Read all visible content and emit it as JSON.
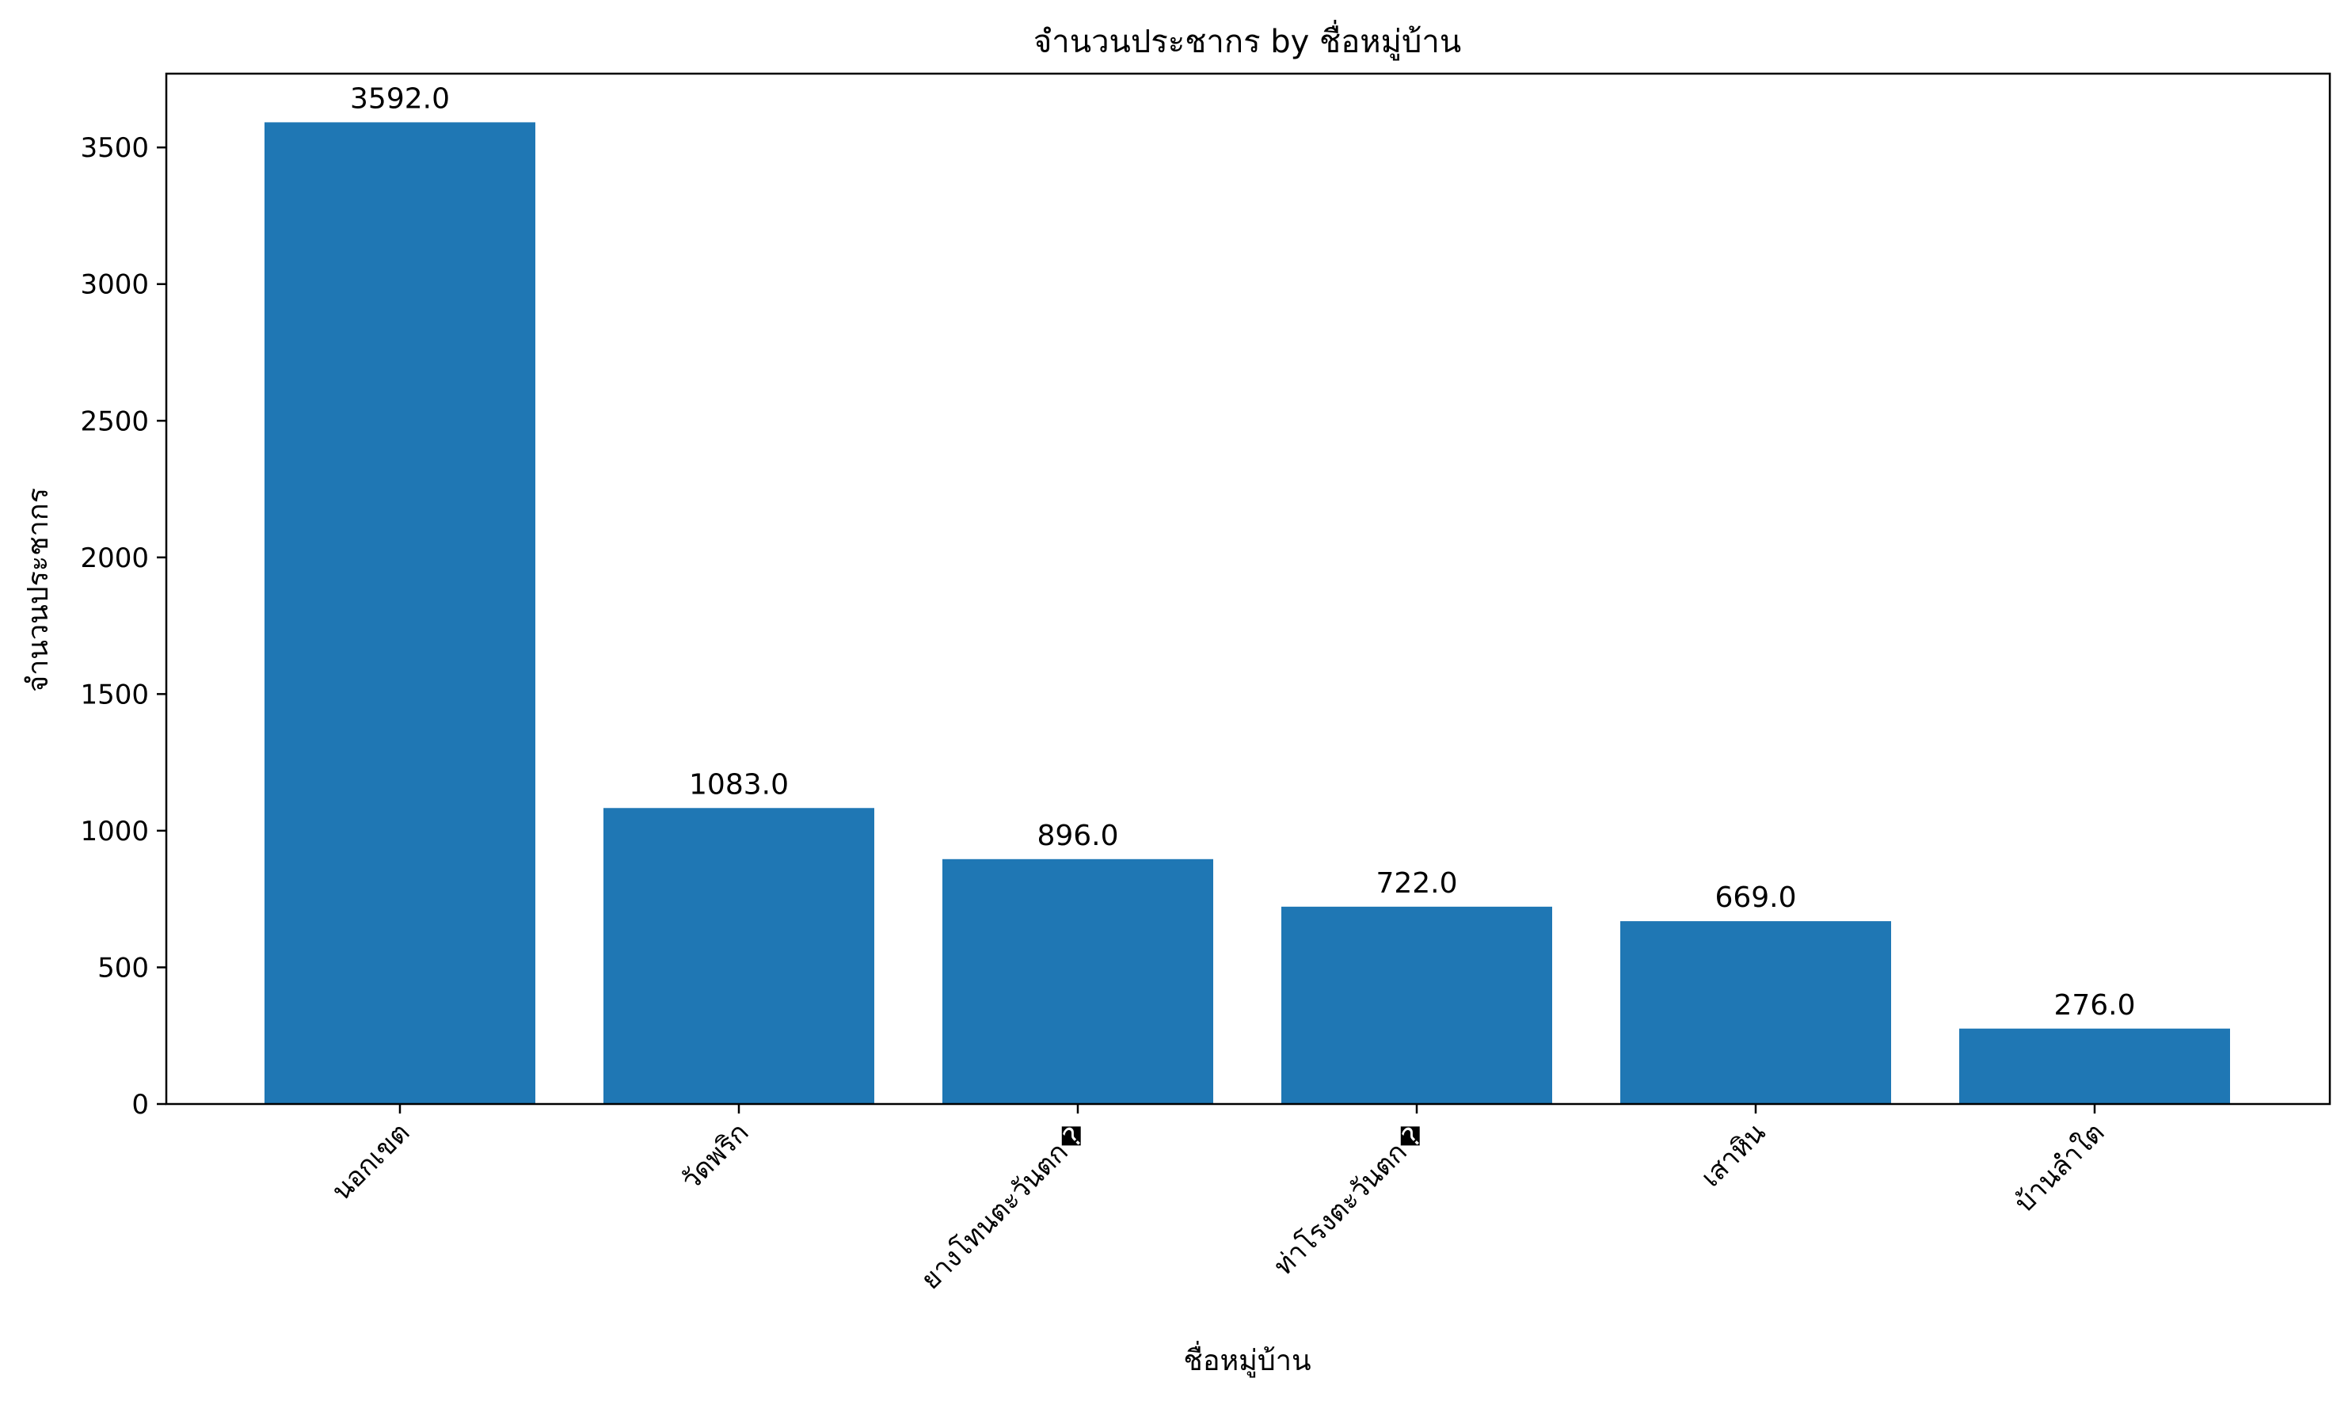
{
  "chart_data": {
    "type": "bar",
    "title": "จำนวนประชากร by ชื่อหมู่บ้าน",
    "xlabel": "ชื่อหมู่บ้าน",
    "ylabel": "จำนวนประชากร",
    "categories": [
      "นอกเขต",
      "วัดพริก",
      "ยางโทนตะวันตก�",
      "ท่าโรงตะวันตก�",
      "เสาหิน",
      "บ้านลำใต"
    ],
    "values": [
      3592.0,
      1083.0,
      896.0,
      722.0,
      669.0,
      276.0
    ],
    "value_labels": [
      "3592.0",
      "1083.0",
      "896.0",
      "722.0",
      "669.0",
      "276.0"
    ],
    "ylim": [
      0,
      3770
    ],
    "yticks": [
      0,
      500,
      1000,
      1500,
      2000,
      2500,
      3000,
      3500
    ],
    "bar_color": "#1f77b4",
    "grid": false,
    "legend": "none"
  }
}
